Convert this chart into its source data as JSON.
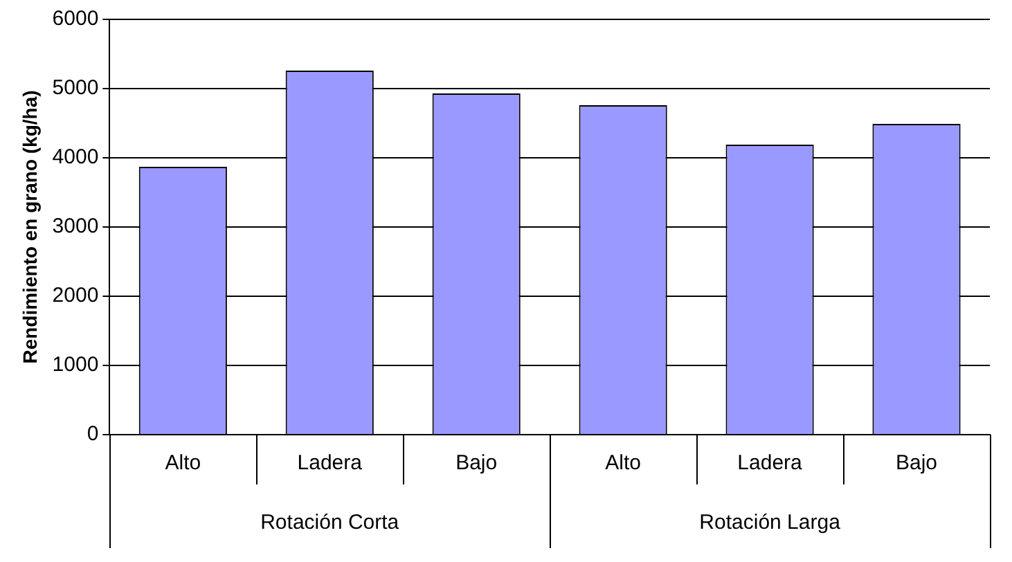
{
  "chart_data": {
    "type": "bar",
    "ylabel": "Rendimiento en grano (kg/ha)",
    "categories": [
      "Alto",
      "Ladera",
      "Bajo",
      "Alto",
      "Ladera",
      "Bajo"
    ],
    "values": [
      3870,
      5260,
      4930,
      4760,
      4190,
      4490
    ],
    "color": "#9999ff",
    "ylim": [
      0,
      6000
    ],
    "yticks": [
      0,
      1000,
      2000,
      3000,
      4000,
      5000,
      6000
    ],
    "grid": "y",
    "annotations": [
      "Rotación Corta",
      "Rotación Larga"
    ]
  }
}
